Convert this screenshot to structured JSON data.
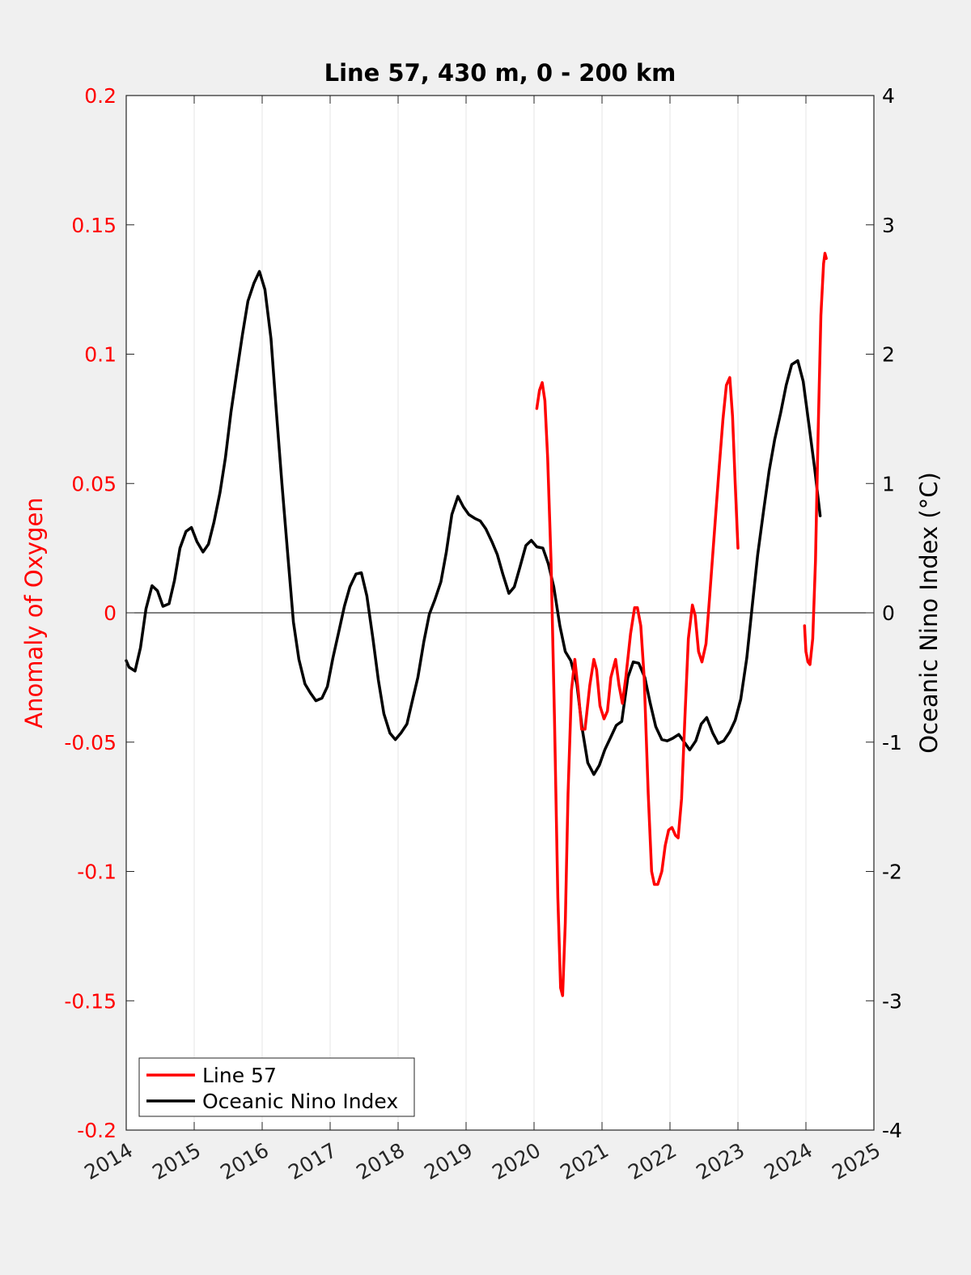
{
  "chart_data": {
    "type": "line",
    "title": "Line 57, 430 m, 0 - 200 km",
    "xlabel": "",
    "ylabel_left": "Anomaly of Oxygen",
    "ylabel_right": "Oceanic Nino Index (°C)",
    "xlim": [
      2014,
      2025
    ],
    "ylim_left": [
      -0.2,
      0.2
    ],
    "ylim_right": [
      -4,
      4
    ],
    "x_ticks": [
      2014,
      2015,
      2016,
      2017,
      2018,
      2019,
      2020,
      2021,
      2022,
      2023,
      2024,
      2025
    ],
    "x_tick_labels": [
      "2014",
      "2015",
      "2016",
      "2017",
      "2018",
      "2019",
      "2020",
      "2021",
      "2022",
      "2023",
      "2024",
      "2025"
    ],
    "y_left_ticks": [
      -0.2,
      -0.15,
      -0.1,
      -0.05,
      0,
      0.05,
      0.1,
      0.15,
      0.2
    ],
    "y_left_tick_labels": [
      "-0.2",
      "-0.15",
      "-0.1",
      "-0.05",
      "0",
      "0.05",
      "0.1",
      "0.15",
      "0.2"
    ],
    "y_right_ticks": [
      -4,
      -3,
      -2,
      -1,
      0,
      1,
      2,
      3,
      4
    ],
    "y_right_tick_labels": [
      "-4",
      "-3",
      "-2",
      "-1",
      "0",
      "1",
      "2",
      "3",
      "4"
    ],
    "grid": "vertical",
    "legend_placement": "bottom-left",
    "colors": {
      "line57": "#ff0000",
      "oni": "#000000",
      "left_axis": "#ff0000",
      "right_axis": "#000000"
    },
    "series": [
      {
        "name": "Line 57",
        "axis": "left",
        "segments": [
          [
            [
              2020.04,
              0.079
            ],
            [
              2020.08,
              0.086
            ],
            [
              2020.12,
              0.089
            ],
            [
              2020.16,
              0.082
            ],
            [
              2020.2,
              0.06
            ],
            [
              2020.25,
              0.02
            ],
            [
              2020.3,
              -0.04
            ],
            [
              2020.35,
              -0.11
            ],
            [
              2020.39,
              -0.145
            ],
            [
              2020.42,
              -0.148
            ],
            [
              2020.46,
              -0.12
            ],
            [
              2020.5,
              -0.07
            ],
            [
              2020.55,
              -0.03
            ],
            [
              2020.6,
              -0.018
            ],
            [
              2020.65,
              -0.03
            ],
            [
              2020.7,
              -0.045
            ],
            [
              2020.75,
              -0.045
            ],
            [
              2020.82,
              -0.028
            ],
            [
              2020.88,
              -0.018
            ],
            [
              2020.92,
              -0.022
            ],
            [
              2020.97,
              -0.036
            ],
            [
              2021.03,
              -0.041
            ],
            [
              2021.08,
              -0.038
            ],
            [
              2021.13,
              -0.025
            ],
            [
              2021.2,
              -0.018
            ],
            [
              2021.25,
              -0.028
            ],
            [
              2021.3,
              -0.035
            ],
            [
              2021.35,
              -0.025
            ],
            [
              2021.42,
              -0.008
            ],
            [
              2021.48,
              0.002
            ],
            [
              2021.52,
              0.002
            ],
            [
              2021.57,
              -0.005
            ],
            [
              2021.62,
              -0.025
            ],
            [
              2021.68,
              -0.07
            ],
            [
              2021.73,
              -0.1
            ],
            [
              2021.77,
              -0.105
            ],
            [
              2021.82,
              -0.105
            ],
            [
              2021.88,
              -0.1
            ],
            [
              2021.93,
              -0.09
            ],
            [
              2021.98,
              -0.084
            ],
            [
              2022.03,
              -0.083
            ],
            [
              2022.08,
              -0.086
            ],
            [
              2022.12,
              -0.087
            ],
            [
              2022.17,
              -0.072
            ],
            [
              2022.22,
              -0.04
            ],
            [
              2022.27,
              -0.01
            ],
            [
              2022.33,
              0.003
            ],
            [
              2022.37,
              -0.001
            ],
            [
              2022.42,
              -0.015
            ],
            [
              2022.47,
              -0.019
            ],
            [
              2022.53,
              -0.012
            ],
            [
              2022.58,
              0.005
            ],
            [
              2022.65,
              0.03
            ],
            [
              2022.72,
              0.055
            ],
            [
              2022.78,
              0.075
            ],
            [
              2022.83,
              0.088
            ],
            [
              2022.88,
              0.091
            ],
            [
              2022.92,
              0.076
            ],
            [
              2022.96,
              0.05
            ],
            [
              2023.0,
              0.025
            ]
          ],
          [
            [
              2023.98,
              -0.005
            ],
            [
              2024.0,
              -0.015
            ],
            [
              2024.03,
              -0.019
            ],
            [
              2024.06,
              -0.02
            ],
            [
              2024.1,
              -0.01
            ],
            [
              2024.14,
              0.02
            ],
            [
              2024.18,
              0.07
            ],
            [
              2024.22,
              0.115
            ],
            [
              2024.26,
              0.135
            ],
            [
              2024.28,
              0.139
            ],
            [
              2024.3,
              0.137
            ]
          ]
        ]
      },
      {
        "name": "Oceanic Nino Index",
        "axis": "right",
        "segments": [
          [
            [
              2014.0,
              -0.37
            ],
            [
              2014.04,
              -0.42
            ],
            [
              2014.13,
              -0.45
            ],
            [
              2014.21,
              -0.27
            ],
            [
              2014.29,
              0.03
            ],
            [
              2014.38,
              0.21
            ],
            [
              2014.46,
              0.17
            ],
            [
              2014.54,
              0.05
            ],
            [
              2014.63,
              0.07
            ],
            [
              2014.71,
              0.25
            ],
            [
              2014.79,
              0.5
            ],
            [
              2014.88,
              0.63
            ],
            [
              2014.96,
              0.66
            ],
            [
              2015.04,
              0.55
            ],
            [
              2015.13,
              0.47
            ],
            [
              2015.21,
              0.53
            ],
            [
              2015.29,
              0.7
            ],
            [
              2015.38,
              0.93
            ],
            [
              2015.46,
              1.2
            ],
            [
              2015.54,
              1.55
            ],
            [
              2015.63,
              1.87
            ],
            [
              2015.71,
              2.15
            ],
            [
              2015.79,
              2.41
            ],
            [
              2015.88,
              2.55
            ],
            [
              2015.96,
              2.64
            ],
            [
              2016.04,
              2.5
            ],
            [
              2016.13,
              2.12
            ],
            [
              2016.21,
              1.55
            ],
            [
              2016.29,
              1.0
            ],
            [
              2016.38,
              0.43
            ],
            [
              2016.46,
              -0.07
            ],
            [
              2016.54,
              -0.36
            ],
            [
              2016.63,
              -0.55
            ],
            [
              2016.71,
              -0.62
            ],
            [
              2016.79,
              -0.68
            ],
            [
              2016.88,
              -0.66
            ],
            [
              2016.96,
              -0.57
            ],
            [
              2017.04,
              -0.35
            ],
            [
              2017.13,
              -0.14
            ],
            [
              2017.21,
              0.05
            ],
            [
              2017.29,
              0.2
            ],
            [
              2017.38,
              0.3
            ],
            [
              2017.46,
              0.31
            ],
            [
              2017.54,
              0.13
            ],
            [
              2017.63,
              -0.2
            ],
            [
              2017.71,
              -0.52
            ],
            [
              2017.79,
              -0.78
            ],
            [
              2017.88,
              -0.93
            ],
            [
              2017.96,
              -0.98
            ],
            [
              2018.04,
              -0.93
            ],
            [
              2018.13,
              -0.86
            ],
            [
              2018.21,
              -0.68
            ],
            [
              2018.29,
              -0.5
            ],
            [
              2018.38,
              -0.22
            ],
            [
              2018.46,
              -0.01
            ],
            [
              2018.54,
              0.1
            ],
            [
              2018.63,
              0.24
            ],
            [
              2018.71,
              0.47
            ],
            [
              2018.79,
              0.76
            ],
            [
              2018.88,
              0.9
            ],
            [
              2018.96,
              0.82
            ],
            [
              2019.04,
              0.76
            ],
            [
              2019.13,
              0.73
            ],
            [
              2019.21,
              0.71
            ],
            [
              2019.29,
              0.65
            ],
            [
              2019.38,
              0.55
            ],
            [
              2019.46,
              0.45
            ],
            [
              2019.54,
              0.3
            ],
            [
              2019.63,
              0.15
            ],
            [
              2019.71,
              0.2
            ],
            [
              2019.79,
              0.35
            ],
            [
              2019.88,
              0.52
            ],
            [
              2019.96,
              0.56
            ],
            [
              2020.04,
              0.51
            ],
            [
              2020.13,
              0.5
            ],
            [
              2020.21,
              0.38
            ],
            [
              2020.29,
              0.2
            ],
            [
              2020.38,
              -0.1
            ],
            [
              2020.46,
              -0.3
            ],
            [
              2020.54,
              -0.37
            ],
            [
              2020.63,
              -0.55
            ],
            [
              2020.71,
              -0.9
            ],
            [
              2020.79,
              -1.16
            ],
            [
              2020.88,
              -1.25
            ],
            [
              2020.96,
              -1.18
            ],
            [
              2021.04,
              -1.06
            ],
            [
              2021.13,
              -0.96
            ],
            [
              2021.21,
              -0.87
            ],
            [
              2021.29,
              -0.84
            ],
            [
              2021.38,
              -0.5
            ],
            [
              2021.46,
              -0.38
            ],
            [
              2021.54,
              -0.39
            ],
            [
              2021.63,
              -0.5
            ],
            [
              2021.71,
              -0.7
            ],
            [
              2021.79,
              -0.88
            ],
            [
              2021.88,
              -0.98
            ],
            [
              2021.96,
              -0.99
            ],
            [
              2022.04,
              -0.97
            ],
            [
              2022.13,
              -0.94
            ],
            [
              2022.21,
              -1.0
            ],
            [
              2022.29,
              -1.06
            ],
            [
              2022.38,
              -0.99
            ],
            [
              2022.46,
              -0.86
            ],
            [
              2022.54,
              -0.81
            ],
            [
              2022.63,
              -0.93
            ],
            [
              2022.71,
              -1.01
            ],
            [
              2022.79,
              -0.99
            ],
            [
              2022.88,
              -0.92
            ],
            [
              2022.96,
              -0.83
            ],
            [
              2023.04,
              -0.67
            ],
            [
              2023.13,
              -0.35
            ],
            [
              2023.21,
              0.05
            ],
            [
              2023.29,
              0.45
            ],
            [
              2023.38,
              0.8
            ],
            [
              2023.46,
              1.1
            ],
            [
              2023.54,
              1.34
            ],
            [
              2023.63,
              1.55
            ],
            [
              2023.71,
              1.76
            ],
            [
              2023.79,
              1.92
            ],
            [
              2023.88,
              1.95
            ],
            [
              2023.96,
              1.79
            ],
            [
              2024.04,
              1.47
            ],
            [
              2024.13,
              1.11
            ],
            [
              2024.21,
              0.75
            ]
          ]
        ]
      }
    ]
  }
}
